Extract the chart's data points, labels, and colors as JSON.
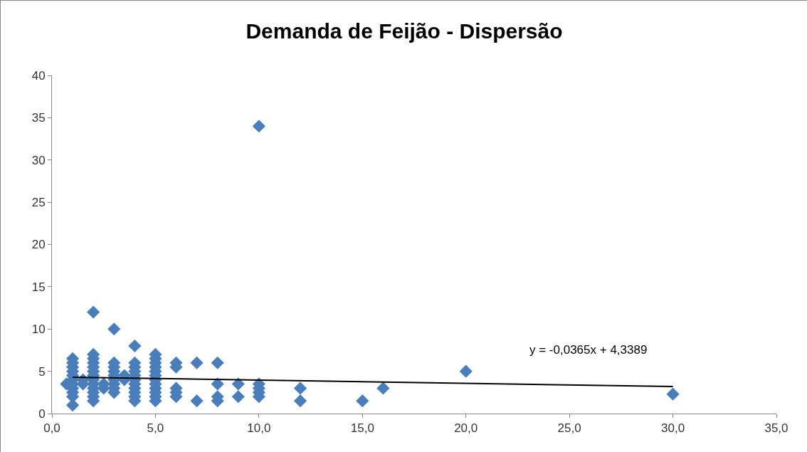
{
  "chart_data": {
    "type": "scatter",
    "title": "Demanda de Feijão - Dispersão",
    "marker": "diamond",
    "xlim": [
      0,
      35
    ],
    "xticks": [
      {
        "value": 0,
        "label": "0,0"
      },
      {
        "value": 5,
        "label": "5,0"
      },
      {
        "value": 10,
        "label": "10,0"
      },
      {
        "value": 15,
        "label": "15,0"
      },
      {
        "value": 20,
        "label": "20,0"
      },
      {
        "value": 25,
        "label": "25,0"
      },
      {
        "value": 30,
        "label": "30,0"
      },
      {
        "value": 35,
        "label": "35,0"
      }
    ],
    "ylim": [
      0,
      40
    ],
    "yticks": [
      0,
      5,
      10,
      15,
      20,
      25,
      30,
      35,
      40
    ],
    "series": [
      {
        "color": "#4a7ebb",
        "x": [
          0.7,
          1,
          1,
          1,
          1,
          1,
          1,
          1,
          1,
          1,
          1,
          1,
          1.5,
          1.5,
          2,
          2,
          2,
          2,
          2,
          2,
          2,
          2,
          2,
          2,
          2,
          2,
          2,
          2.5,
          2.5,
          3,
          3,
          3,
          3,
          3,
          3,
          3,
          3,
          3,
          3.5,
          3.5,
          4,
          4,
          4,
          4,
          4,
          4,
          4,
          4,
          4,
          4,
          4,
          5,
          5,
          5,
          5,
          5,
          5,
          5,
          5,
          5,
          5,
          5,
          5,
          6,
          6,
          6,
          6,
          6,
          7,
          7,
          8,
          8,
          8,
          8,
          9,
          9,
          10,
          10,
          10,
          10,
          10,
          12,
          12,
          15,
          16,
          20,
          30
        ],
        "values": [
          3.5,
          1,
          2,
          2.5,
          3,
          3.5,
          4,
          4.5,
          5,
          5.5,
          6,
          6.5,
          3.5,
          4,
          1.5,
          2,
          2.5,
          3,
          3.5,
          4,
          4.5,
          5,
          5.5,
          6,
          6.5,
          7,
          12,
          3,
          3.5,
          2.5,
          3,
          3.5,
          4,
          4.5,
          5,
          5.5,
          6,
          10,
          4,
          4.5,
          1.5,
          2,
          2.5,
          3,
          3.5,
          4,
          4.5,
          5,
          5.5,
          6,
          8,
          1.5,
          2,
          2.5,
          3,
          3.5,
          4,
          4.5,
          5,
          5.5,
          6,
          6.5,
          7,
          2,
          2.5,
          3,
          5.5,
          6,
          1.5,
          6,
          1.5,
          2,
          3.5,
          6,
          2,
          3.5,
          2,
          2.5,
          3,
          3.5,
          34,
          1.5,
          3,
          1.5,
          3,
          5,
          2.3
        ]
      },
      {
        "type": "line",
        "color": "#000000",
        "marker": "none",
        "x": [
          1,
          30
        ],
        "values": [
          4.3,
          3.2
        ]
      }
    ],
    "annotations": [
      "y = -0,0365x + 4,3389"
    ]
  }
}
